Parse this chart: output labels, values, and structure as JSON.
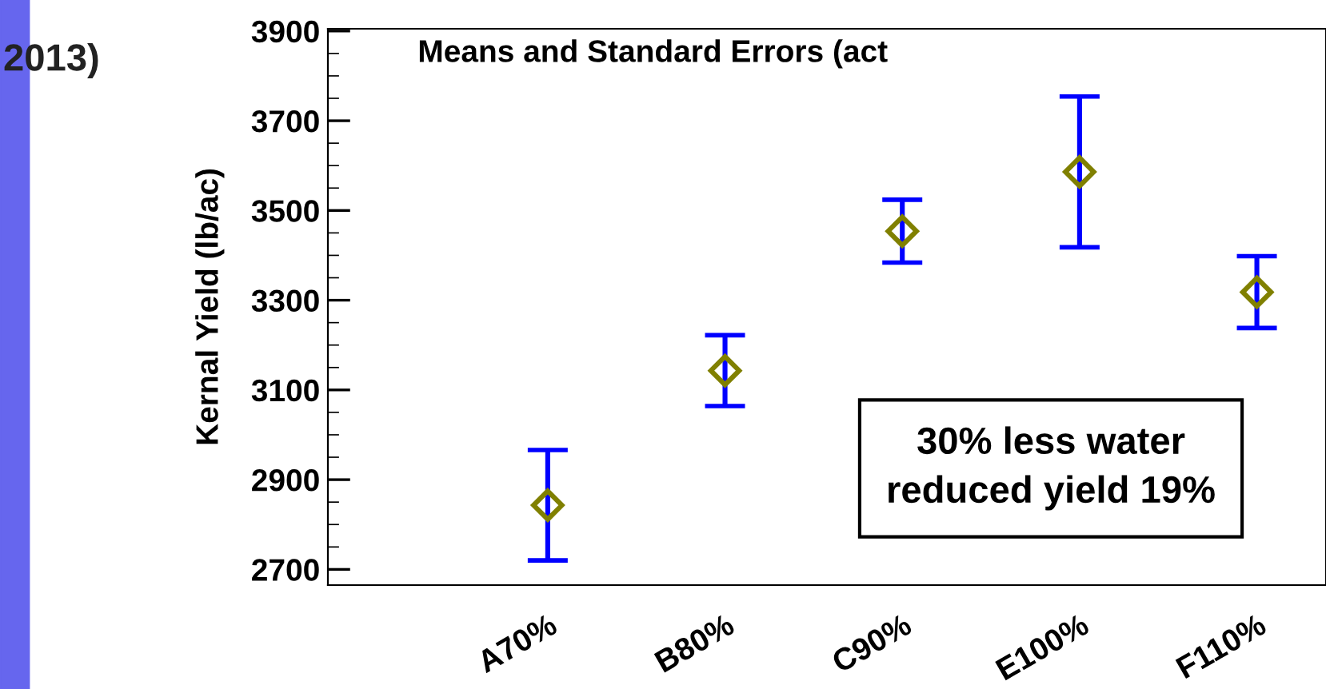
{
  "chart_data": {
    "type": "scatter",
    "title": "Means and Standard Errors (act",
    "ylabel": "Kernal Yield (lb/ac)",
    "categories": [
      "A70%",
      "B80%",
      "C90%",
      "E100%",
      "F110%"
    ],
    "series": [
      {
        "color": "#808000",
        "values": [
          2843,
          3143,
          3454,
          3586,
          3318
        ],
        "errors": [
          123,
          79,
          70,
          168,
          80
        ]
      }
    ],
    "marker": "diamond",
    "ylim": [
      2665,
      3905
    ],
    "yticks": [
      2700,
      2900,
      3100,
      3300,
      3500,
      3700,
      3900
    ],
    "annotations": [
      "2013)",
      "30% less water\nreduced yield 19%"
    ],
    "grid": false,
    "legend": false
  }
}
